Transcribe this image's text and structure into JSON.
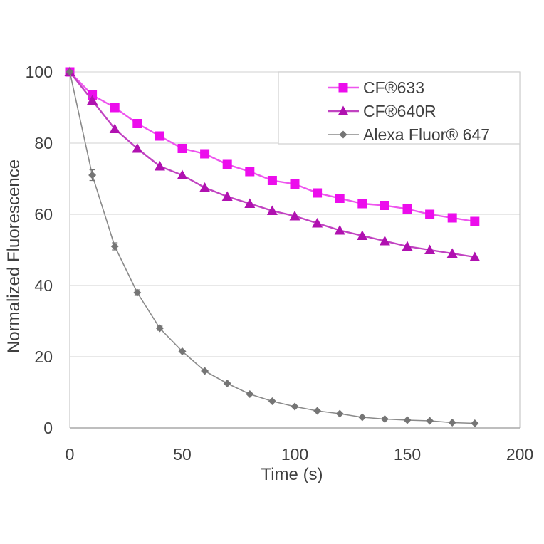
{
  "chart_data": {
    "type": "line",
    "title": "",
    "xlabel": "Time (s)",
    "ylabel": "Normalized Fluorescence",
    "xlim": [
      0,
      200
    ],
    "ylim": [
      0,
      100
    ],
    "x_ticks": [
      0,
      50,
      100,
      150,
      200
    ],
    "y_ticks": [
      0,
      20,
      40,
      60,
      80,
      100
    ],
    "grid": "horizontal",
    "legend_position": "top-right-inside",
    "x": [
      0,
      10,
      20,
      30,
      40,
      50,
      60,
      70,
      80,
      90,
      100,
      110,
      120,
      130,
      140,
      150,
      160,
      170,
      180
    ],
    "series": [
      {
        "name": "CF®633",
        "marker": "square",
        "line_color": "#ee55ee",
        "marker_color": "#ec0dec",
        "line_width": 2.4,
        "values": [
          100,
          93.5,
          90,
          85.5,
          82,
          78.5,
          77,
          74,
          72,
          69.5,
          68.5,
          66,
          64.5,
          63,
          62.5,
          61.5,
          60,
          59,
          58
        ]
      },
      {
        "name": "CF®640R",
        "marker": "triangle",
        "line_color": "#c143c1",
        "marker_color": "#b011b0",
        "line_width": 2.4,
        "values": [
          100,
          92,
          84,
          78.5,
          73.5,
          71,
          67.5,
          65,
          63,
          61,
          59.5,
          57.5,
          55.5,
          54,
          52.5,
          51,
          50,
          49,
          48
        ]
      },
      {
        "name": "Alexa Fluor® 647",
        "marker": "diamond",
        "line_color": "#8a8a8a",
        "marker_color": "#757575",
        "line_width": 1.6,
        "values": [
          100,
          71,
          51,
          38,
          28,
          21.5,
          16,
          12.5,
          9.5,
          7.5,
          6,
          4.8,
          4,
          3,
          2.5,
          2.2,
          2,
          1.5,
          1.3
        ],
        "errors": [
          0,
          1.5,
          1.0,
          0.8,
          0.6,
          0,
          0,
          0,
          0,
          0,
          0,
          0,
          0,
          0,
          0,
          0,
          0,
          0,
          0
        ]
      }
    ]
  },
  "style": {
    "background": "#ffffff",
    "text_color": "#3f3f3f",
    "grid_color": "#d9d9d9",
    "axis_color": "#a9a9a9",
    "plot_border_color": "#c8c8c8",
    "legend_border_color": "#cfcfcf",
    "legend_bg": "#ffffff"
  }
}
